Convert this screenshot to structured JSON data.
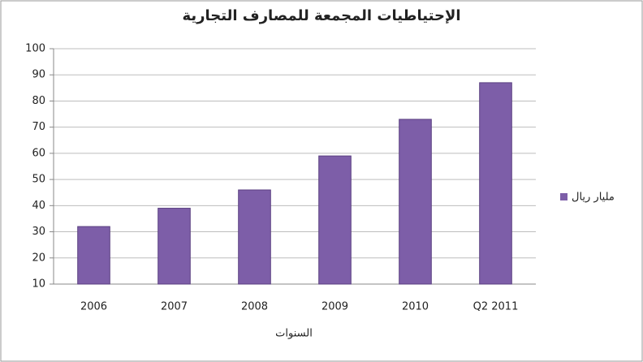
{
  "chart_data": {
    "type": "bar",
    "title": "الإحتياطيات المجمعة للمصارف التجارية",
    "x_label": "السنوات",
    "categories": [
      "2006",
      "2007",
      "2008",
      "2009",
      "2010",
      "Q2 2011"
    ],
    "series": [
      {
        "name": "مليار ريال",
        "color": "#7d5ea8",
        "values": [
          32,
          39,
          46,
          59,
          73,
          87
        ]
      }
    ],
    "ylim": [
      10,
      100
    ],
    "yticks": [
      10,
      20,
      30,
      40,
      50,
      60,
      70,
      80,
      90,
      100
    ],
    "grid": true,
    "legend": "right"
  }
}
